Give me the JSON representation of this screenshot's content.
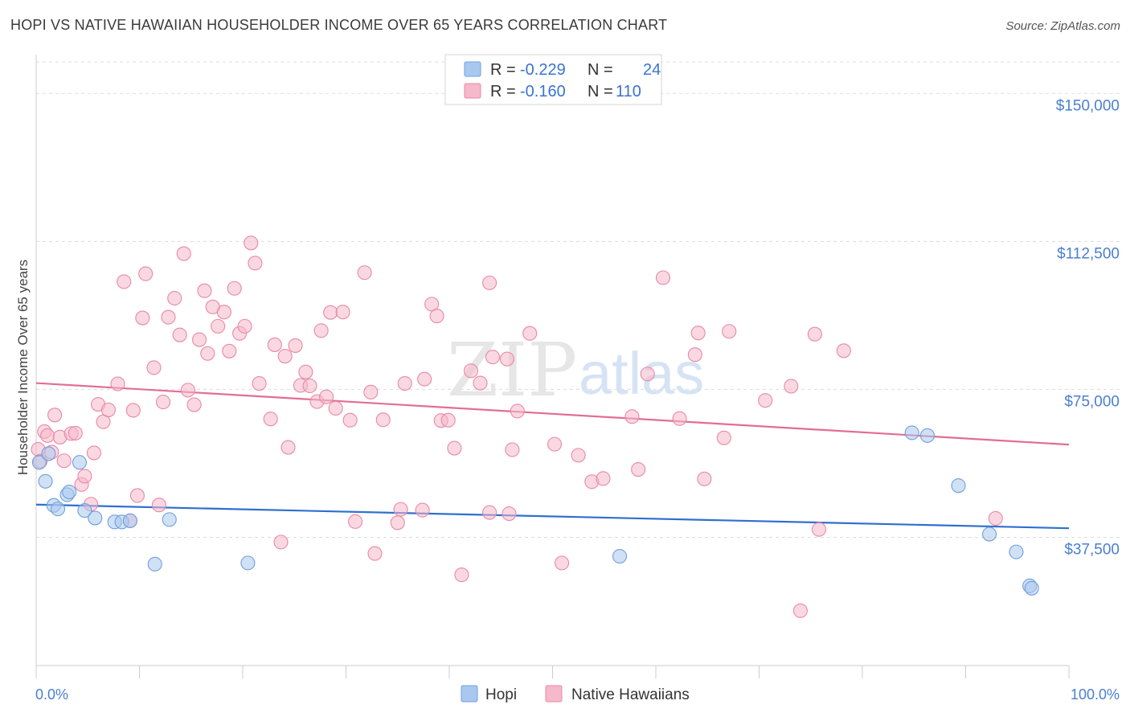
{
  "header": {
    "title": "HOPI VS NATIVE HAWAIIAN HOUSEHOLDER INCOME OVER 65 YEARS CORRELATION CHART",
    "source": "Source: ZipAtlas.com"
  },
  "legend": {
    "rows": [
      {
        "r_label": "R = ",
        "r_value": "-0.229",
        "n_label": "N = ",
        "n_value": "24",
        "color": "#a9c8ef"
      },
      {
        "r_label": "R = ",
        "r_value": "-0.160",
        "n_label": "N = ",
        "n_value": "110",
        "color": "#f6b8cb"
      }
    ]
  },
  "watermark": {
    "zip": "ZIP",
    "atlas": "atlas"
  },
  "chart_data": {
    "type": "scatter",
    "title": "HOPI VS NATIVE HAWAIIAN HOUSEHOLDER INCOME OVER 65 YEARS CORRELATION CHART",
    "xlabel": "",
    "ylabel": "Householder Income Over 65 years",
    "xlim": [
      0,
      100
    ],
    "ylim": [
      5000,
      158000
    ],
    "x_tick_labels": [
      "0.0%",
      "100.0%"
    ],
    "y_ticks": [
      37500,
      75000,
      112500,
      150000
    ],
    "y_tick_labels": [
      "$37,500",
      "$75,000",
      "$112,500",
      "$150,000"
    ],
    "grid": true,
    "legend_position": "top-center",
    "series": [
      {
        "name": "Hopi",
        "color": "#a9c8ef",
        "edge": "#6f9fdc",
        "line_color": "#2f6fd0",
        "trend": {
          "x": [
            0,
            100
          ],
          "y": [
            45800,
            39800
          ]
        },
        "points": [
          [
            0.3,
            56500
          ],
          [
            0.9,
            51700
          ],
          [
            1.2,
            58700
          ],
          [
            1.7,
            45600
          ],
          [
            2.1,
            44700
          ],
          [
            3.0,
            48300
          ],
          [
            3.2,
            49000
          ],
          [
            4.2,
            56500
          ],
          [
            4.7,
            44300
          ],
          [
            5.7,
            42400
          ],
          [
            7.6,
            41400
          ],
          [
            8.3,
            41400
          ],
          [
            9.1,
            41700
          ],
          [
            11.5,
            30700
          ],
          [
            12.9,
            42000
          ],
          [
            20.5,
            31000
          ],
          [
            56.5,
            32700
          ],
          [
            84.8,
            64000
          ],
          [
            86.3,
            63300
          ],
          [
            89.3,
            50600
          ],
          [
            92.3,
            38300
          ],
          [
            94.9,
            33800
          ],
          [
            96.2,
            25200
          ],
          [
            96.4,
            24600
          ]
        ]
      },
      {
        "name": "Native Hawaiians",
        "color": "#f6b8cb",
        "edge": "#e889a7",
        "line_color": "#e26d95",
        "trend": {
          "x": [
            0,
            100
          ],
          "y": [
            76600,
            61000
          ]
        },
        "points": [
          [
            0.2,
            59800
          ],
          [
            0.4,
            56800
          ],
          [
            0.8,
            64300
          ],
          [
            1.1,
            63300
          ],
          [
            1.5,
            59100
          ],
          [
            1.8,
            68500
          ],
          [
            2.3,
            62900
          ],
          [
            2.7,
            56900
          ],
          [
            3.4,
            63800
          ],
          [
            3.8,
            63900
          ],
          [
            4.4,
            50900
          ],
          [
            4.7,
            53000
          ],
          [
            5.3,
            45900
          ],
          [
            5.6,
            58900
          ],
          [
            6.0,
            71200
          ],
          [
            6.5,
            66800
          ],
          [
            7.0,
            69800
          ],
          [
            7.9,
            76400
          ],
          [
            8.5,
            102300
          ],
          [
            9.1,
            41700
          ],
          [
            9.4,
            69700
          ],
          [
            9.8,
            48100
          ],
          [
            10.3,
            93100
          ],
          [
            10.6,
            104300
          ],
          [
            11.4,
            80500
          ],
          [
            11.9,
            45700
          ],
          [
            12.3,
            71800
          ],
          [
            12.8,
            93300
          ],
          [
            13.4,
            98100
          ],
          [
            13.9,
            88800
          ],
          [
            14.3,
            109400
          ],
          [
            14.7,
            74800
          ],
          [
            15.3,
            71100
          ],
          [
            15.8,
            87600
          ],
          [
            16.3,
            100000
          ],
          [
            16.6,
            84100
          ],
          [
            17.1,
            95900
          ],
          [
            17.6,
            91000
          ],
          [
            18.2,
            94600
          ],
          [
            18.7,
            84700
          ],
          [
            19.2,
            100600
          ],
          [
            19.7,
            89200
          ],
          [
            20.2,
            91000
          ],
          [
            20.8,
            112100
          ],
          [
            21.2,
            107000
          ],
          [
            21.6,
            76500
          ],
          [
            22.7,
            67500
          ],
          [
            23.1,
            86300
          ],
          [
            23.7,
            36300
          ],
          [
            24.1,
            83400
          ],
          [
            24.4,
            60300
          ],
          [
            25.1,
            86100
          ],
          [
            25.6,
            76000
          ],
          [
            26.1,
            79400
          ],
          [
            26.5,
            75900
          ],
          [
            27.2,
            71900
          ],
          [
            27.6,
            89900
          ],
          [
            28.1,
            73100
          ],
          [
            28.5,
            94500
          ],
          [
            29.0,
            70200
          ],
          [
            29.7,
            94600
          ],
          [
            30.4,
            67200
          ],
          [
            30.9,
            41500
          ],
          [
            31.8,
            104600
          ],
          [
            32.4,
            74300
          ],
          [
            32.8,
            33400
          ],
          [
            33.6,
            67300
          ],
          [
            35.0,
            41200
          ],
          [
            35.3,
            44600
          ],
          [
            35.7,
            76500
          ],
          [
            37.4,
            44400
          ],
          [
            37.6,
            77600
          ],
          [
            38.3,
            96600
          ],
          [
            38.8,
            93600
          ],
          [
            39.2,
            67100
          ],
          [
            39.9,
            67200
          ],
          [
            40.5,
            60100
          ],
          [
            41.2,
            28000
          ],
          [
            42.1,
            79700
          ],
          [
            43.0,
            76600
          ],
          [
            43.9,
            102000
          ],
          [
            43.9,
            43800
          ],
          [
            44.2,
            83200
          ],
          [
            45.6,
            82700
          ],
          [
            45.8,
            43500
          ],
          [
            46.1,
            59700
          ],
          [
            46.6,
            69500
          ],
          [
            47.8,
            89200
          ],
          [
            50.2,
            61100
          ],
          [
            50.9,
            31000
          ],
          [
            52.5,
            58300
          ],
          [
            53.8,
            51600
          ],
          [
            54.9,
            52400
          ],
          [
            57.7,
            68100
          ],
          [
            58.3,
            54700
          ],
          [
            59.2,
            78900
          ],
          [
            60.7,
            103300
          ],
          [
            62.3,
            67600
          ],
          [
            63.8,
            83800
          ],
          [
            64.1,
            89300
          ],
          [
            64.7,
            52300
          ],
          [
            66.6,
            62700
          ],
          [
            67.1,
            89700
          ],
          [
            70.6,
            72200
          ],
          [
            73.1,
            75800
          ],
          [
            74.0,
            18900
          ],
          [
            75.4,
            89000
          ],
          [
            75.8,
            39500
          ],
          [
            78.2,
            84800
          ],
          [
            92.9,
            42300
          ]
        ]
      }
    ]
  }
}
